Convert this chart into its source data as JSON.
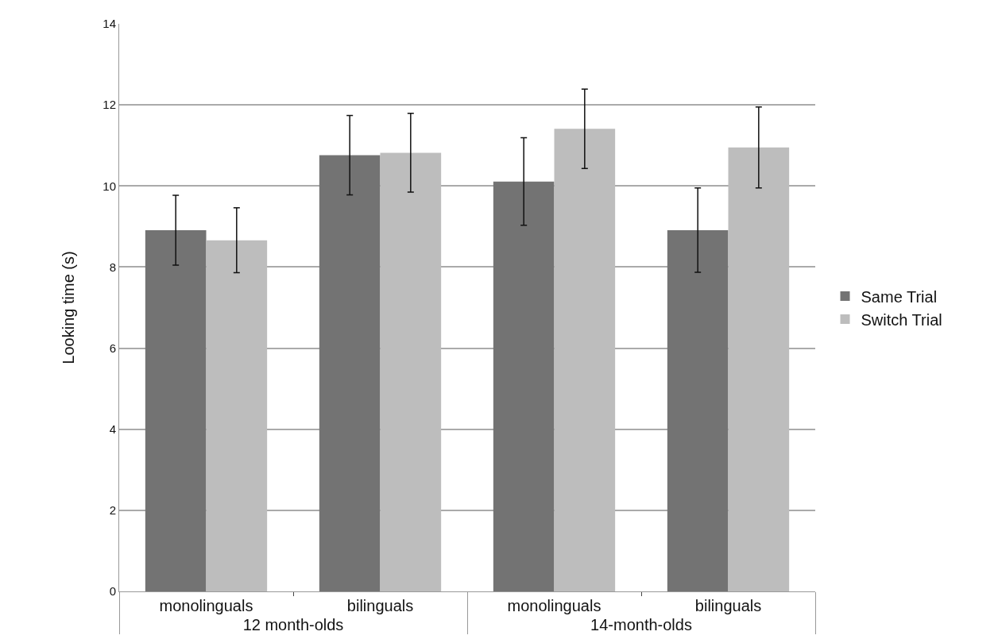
{
  "chart_data": {
    "type": "bar",
    "ylabel": "Looking time (s)",
    "categories": [
      "monolinguals",
      "bilinguals",
      "monolinguals",
      "bilinguals"
    ],
    "annotations": [
      "12 month-olds",
      "14-month-olds"
    ],
    "series": [
      {
        "name": "Same Trial",
        "color": "#737373",
        "values": [
          8.91,
          10.76,
          10.11,
          8.91
        ],
        "errors": [
          0.86,
          0.98,
          1.08,
          1.04
        ]
      },
      {
        "name": "Switch Trial",
        "color": "#bdbdbd",
        "values": [
          8.66,
          10.82,
          11.41,
          10.95
        ],
        "errors": [
          0.8,
          0.97,
          0.98,
          1.0
        ]
      }
    ],
    "ylim": [
      0,
      14
    ],
    "yticks": [
      0,
      2,
      4,
      6,
      8,
      10,
      12,
      14
    ],
    "grid": "y",
    "legend": "right"
  }
}
